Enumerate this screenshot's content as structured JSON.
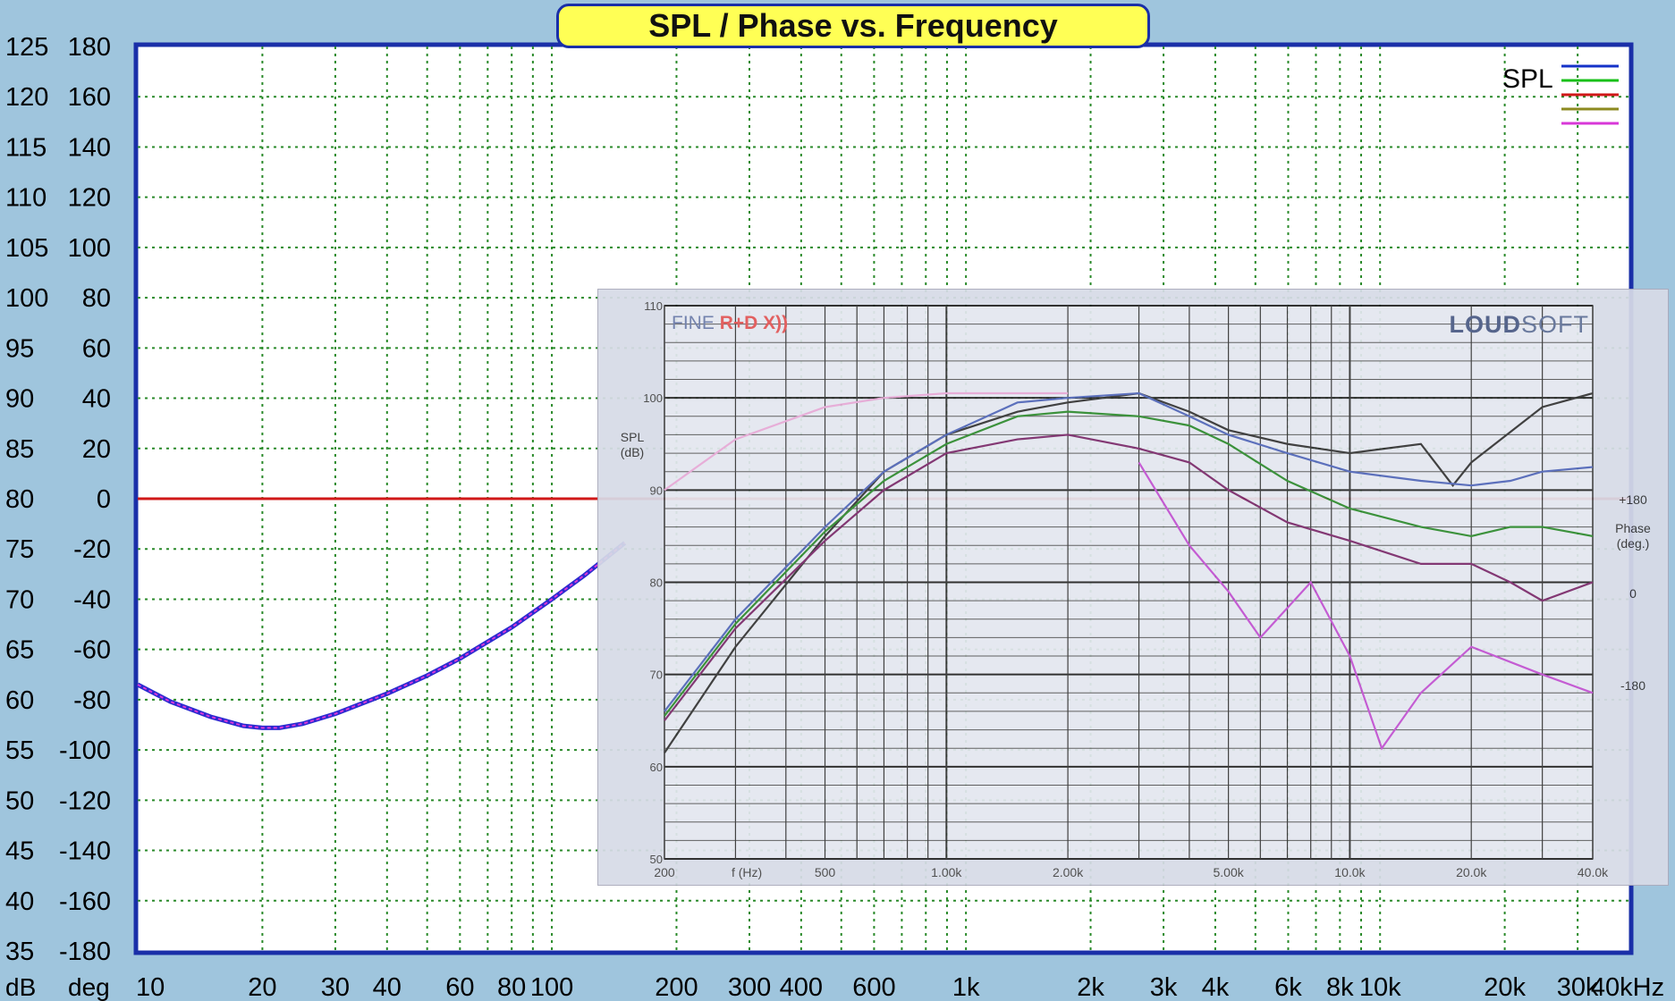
{
  "title": "SPL / Phase vs. Frequency",
  "legend": {
    "label": "SPL",
    "entries": [
      {
        "color": "#1432c8"
      },
      {
        "color": "#18c018"
      },
      {
        "color": "#d01818"
      },
      {
        "color": "#8c8a20"
      },
      {
        "color": "#d838d8"
      }
    ]
  },
  "chart_data": [
    {
      "type": "line",
      "title": "SPL / Phase vs. Frequency",
      "xscale": "log",
      "xlim": [
        10,
        40000
      ],
      "ylim": [
        35,
        125
      ],
      "grid": true,
      "legend_position": "top-right",
      "x_tick_labels": [
        "10",
        "20",
        "30",
        "40",
        "60",
        "80",
        "100",
        "200",
        "300",
        "400",
        "600",
        "1k",
        "2k",
        "3k",
        "4k",
        "6k",
        "8k",
        "10k",
        "20k",
        "30k",
        "40kHz"
      ],
      "x_tick_values": [
        10,
        20,
        30,
        40,
        60,
        80,
        100,
        200,
        300,
        400,
        600,
        1000,
        2000,
        3000,
        4000,
        6000,
        8000,
        10000,
        20000,
        30000,
        40000
      ],
      "y_label": "dB",
      "y_ticks": [
        35,
        40,
        45,
        50,
        55,
        60,
        65,
        70,
        75,
        80,
        85,
        90,
        95,
        100,
        105,
        110,
        115,
        120,
        125
      ],
      "y2_label": "deg",
      "y2_ticks": [
        -180,
        -160,
        -140,
        -120,
        -100,
        -80,
        -60,
        -40,
        -20,
        0,
        20,
        40,
        60,
        80,
        100,
        120,
        140,
        160,
        180
      ],
      "series": [
        {
          "name": "SPL",
          "color": "#2a2ad0",
          "x": [
            10,
            12,
            15,
            18,
            20,
            22,
            25,
            30,
            40,
            50,
            60,
            80,
            100,
            120,
            150
          ],
          "y": [
            61.5,
            59.8,
            58.3,
            57.4,
            57.2,
            57.2,
            57.6,
            58.6,
            60.6,
            62.4,
            64.1,
            67.2,
            70.0,
            72.4,
            75.6
          ]
        },
        {
          "name": "Phase",
          "color": "#d01818",
          "x": [
            10,
            100,
            1000,
            10000,
            40000
          ],
          "y": [
            80,
            80,
            80,
            80,
            80
          ]
        }
      ]
    },
    {
      "type": "line",
      "xscale": "log",
      "xlim": [
        200,
        40000
      ],
      "ylim": [
        50,
        110
      ],
      "grid": true,
      "ylabel": "SPL\n(dB)",
      "xlabel": "f (Hz)",
      "y_ticks": [
        50,
        60,
        70,
        80,
        90,
        100,
        110
      ],
      "x_tick_labels": [
        "200",
        "500",
        "1.00k",
        "2.00k",
        "5.00k",
        "10.0k",
        "20.0k",
        "40.0k"
      ],
      "x_tick_values": [
        200,
        500,
        1000,
        2000,
        5000,
        10000,
        20000,
        40000
      ],
      "y2_label": "Phase\n(deg.)",
      "y2_ticks": [
        "+180",
        "0",
        "-180"
      ],
      "brand_left": "FINE",
      "brand_left_red": "R+D X))",
      "brand_right_bold": "LOUD",
      "brand_right": "SOFT",
      "series": [
        {
          "color": "#333333",
          "x": [
            200,
            300,
            500,
            700,
            1000,
            1500,
            2000,
            3000,
            4000,
            5000,
            7000,
            10000,
            15000,
            18000,
            20000,
            30000,
            40000
          ],
          "y": [
            61.5,
            73,
            85,
            92,
            96,
            98.5,
            99.5,
            100.5,
            98.5,
            96.5,
            95,
            94,
            95,
            90.5,
            93,
            99,
            100.5
          ]
        },
        {
          "color": "#5066b8",
          "x": [
            200,
            300,
            500,
            700,
            1000,
            1500,
            2000,
            3000,
            4000,
            5000,
            7000,
            10000,
            15000,
            20000,
            25000,
            30000,
            40000
          ],
          "y": [
            66,
            76,
            86,
            92,
            96,
            99.5,
            100,
            100.5,
            98,
            96,
            94,
            92,
            91,
            90.5,
            91,
            92,
            92.5
          ]
        },
        {
          "color": "#2e8a2e",
          "x": [
            200,
            300,
            500,
            700,
            1000,
            1500,
            2000,
            3000,
            4000,
            5000,
            7000,
            10000,
            15000,
            20000,
            25000,
            30000,
            40000
          ],
          "y": [
            65.5,
            75.5,
            85.5,
            91,
            95,
            98,
            98.5,
            98,
            97,
            95,
            91,
            88,
            86,
            85,
            86,
            86,
            85
          ]
        },
        {
          "color": "#7a2a6a",
          "x": [
            200,
            300,
            500,
            700,
            1000,
            1500,
            2000,
            3000,
            4000,
            5000,
            7000,
            10000,
            15000,
            20000,
            25000,
            30000,
            40000
          ],
          "y": [
            65,
            75,
            84.5,
            90,
            94,
            95.5,
            96,
            94.5,
            93,
            90,
            86.5,
            84.5,
            82,
            82,
            80,
            78,
            80
          ]
        },
        {
          "color": "#e6a8d6",
          "x": [
            200,
            300,
            500,
            700,
            1000,
            1500,
            2000
          ],
          "y": [
            90,
            95.5,
            99,
            100,
            100.5,
            100.5,
            100.5
          ]
        },
        {
          "color": "#c050d0",
          "x": [
            3000,
            4000,
            5000,
            6000,
            8000,
            10000,
            12000,
            15000,
            20000,
            30000,
            40000
          ],
          "y": [
            93,
            84,
            79,
            74,
            80,
            72,
            62,
            68,
            73,
            70,
            68
          ]
        }
      ]
    }
  ]
}
